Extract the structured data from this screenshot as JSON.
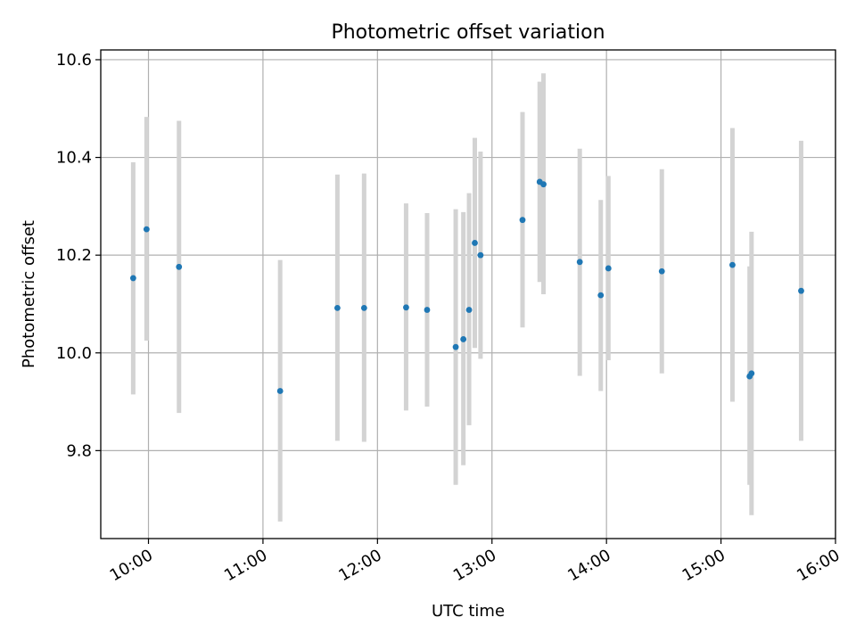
{
  "chart_data": {
    "type": "scatter",
    "title": "Photometric offset variation",
    "xlabel": "UTC time",
    "ylabel": "Photometric offset",
    "x_axis_type": "time",
    "xlim": [
      "09:35",
      "16:00"
    ],
    "ylim": [
      9.62,
      10.62
    ],
    "grid": true,
    "x_ticks": [
      "10:00",
      "11:00",
      "12:00",
      "13:00",
      "14:00",
      "15:00",
      "16:00"
    ],
    "y_ticks": [
      "9.8",
      "10.0",
      "10.2",
      "10.4",
      "10.6"
    ],
    "colors": {
      "point": "#1f77b4",
      "errorbar": "#d3d3d3",
      "grid": "#b0b0b0"
    },
    "points": [
      {
        "x": "09:52",
        "y": 10.153,
        "err_low": 9.915,
        "err_high": 10.39
      },
      {
        "x": "09:59",
        "y": 10.253,
        "err_low": 10.025,
        "err_high": 10.483
      },
      {
        "x": "10:16",
        "y": 10.176,
        "err_low": 9.877,
        "err_high": 10.475
      },
      {
        "x": "11:09",
        "y": 9.922,
        "err_low": 9.655,
        "err_high": 10.19
      },
      {
        "x": "11:39",
        "y": 10.092,
        "err_low": 9.82,
        "err_high": 10.365
      },
      {
        "x": "11:53",
        "y": 10.092,
        "err_low": 9.818,
        "err_high": 10.367
      },
      {
        "x": "12:15",
        "y": 10.093,
        "err_low": 9.882,
        "err_high": 10.306
      },
      {
        "x": "12:26",
        "y": 10.088,
        "err_low": 9.89,
        "err_high": 10.286
      },
      {
        "x": "12:41",
        "y": 10.012,
        "err_low": 9.73,
        "err_high": 10.294
      },
      {
        "x": "12:45",
        "y": 10.028,
        "err_low": 9.77,
        "err_high": 10.288
      },
      {
        "x": "12:48",
        "y": 10.088,
        "err_low": 9.852,
        "err_high": 10.327
      },
      {
        "x": "12:51",
        "y": 10.225,
        "err_low": 10.01,
        "err_high": 10.44
      },
      {
        "x": "12:54",
        "y": 10.2,
        "err_low": 9.988,
        "err_high": 10.412
      },
      {
        "x": "13:16",
        "y": 10.272,
        "err_low": 10.052,
        "err_high": 10.493
      },
      {
        "x": "13:25",
        "y": 10.35,
        "err_low": 10.145,
        "err_high": 10.555
      },
      {
        "x": "13:27",
        "y": 10.345,
        "err_low": 10.12,
        "err_high": 10.572
      },
      {
        "x": "13:46",
        "y": 10.186,
        "err_low": 9.953,
        "err_high": 10.418
      },
      {
        "x": "13:57",
        "y": 10.118,
        "err_low": 9.922,
        "err_high": 10.313
      },
      {
        "x": "14:01",
        "y": 10.173,
        "err_low": 9.985,
        "err_high": 10.362
      },
      {
        "x": "14:29",
        "y": 10.167,
        "err_low": 9.958,
        "err_high": 10.376
      },
      {
        "x": "15:06",
        "y": 10.18,
        "err_low": 9.9,
        "err_high": 10.46
      },
      {
        "x": "15:15",
        "y": 9.952,
        "err_low": 9.73,
        "err_high": 10.177
      },
      {
        "x": "15:16",
        "y": 9.958,
        "err_low": 9.668,
        "err_high": 10.248
      },
      {
        "x": "15:42",
        "y": 10.127,
        "err_low": 9.82,
        "err_high": 10.434
      }
    ]
  }
}
